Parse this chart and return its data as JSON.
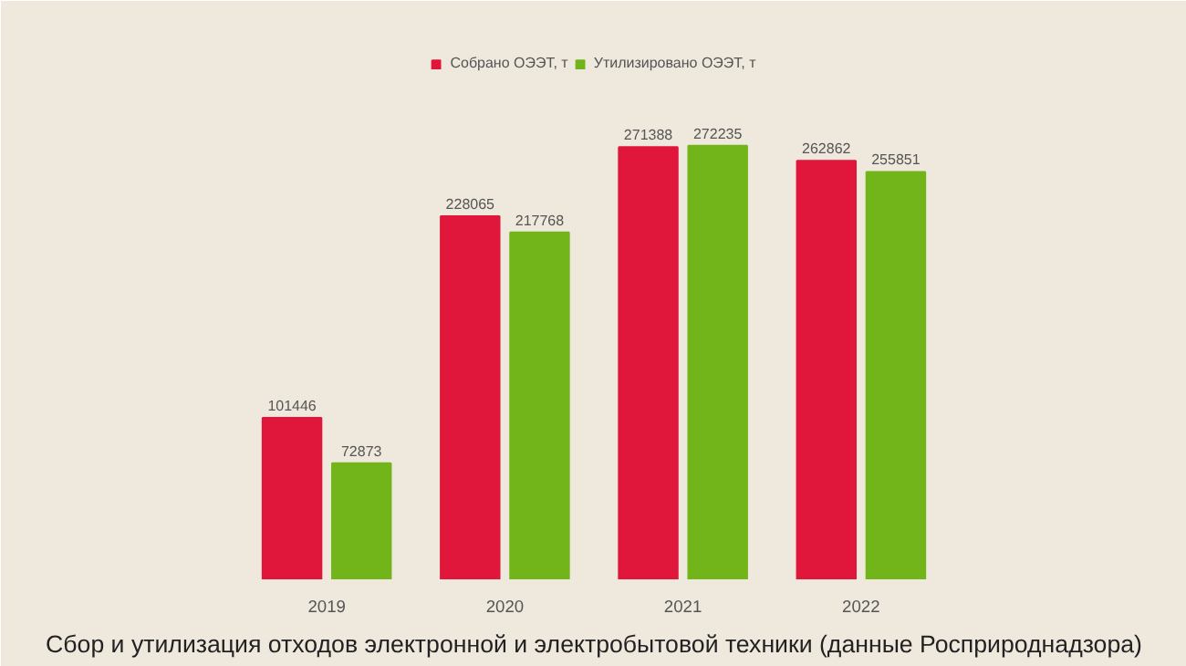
{
  "chart_data": {
    "type": "bar",
    "title": "Сбор и утилизация отходов электронной и электробытовой техники (данные Росприроднадзора)",
    "categories": [
      "2019",
      "2020",
      "2021",
      "2022"
    ],
    "series": [
      {
        "name": "Собрано ОЭЭТ, т",
        "color": "#e0173a",
        "values": [
          101446,
          228065,
          271388,
          262862
        ]
      },
      {
        "name": "Утилизировано ОЭЭТ, т",
        "color": "#72b51a",
        "values": [
          72873,
          217768,
          272235,
          255851
        ]
      }
    ],
    "data_labels": true,
    "legend": "top"
  }
}
